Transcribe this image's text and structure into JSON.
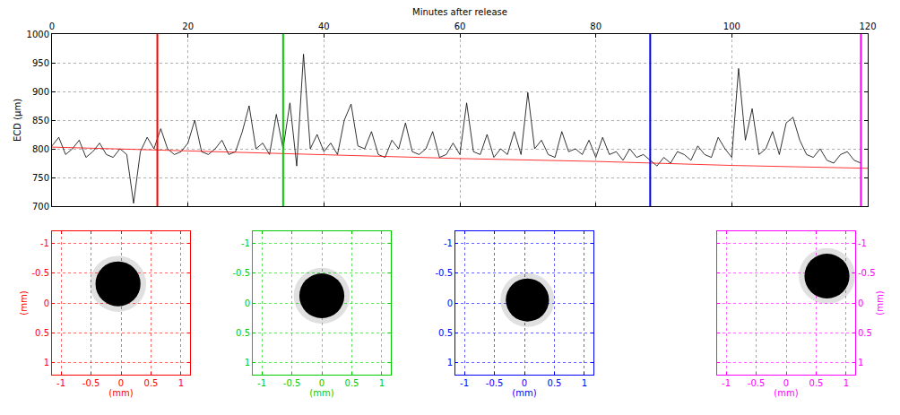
{
  "chart_data": {
    "type": "line",
    "x_label": "Minutes after release",
    "y_label": "ECD (μm)",
    "xlim": [
      0,
      120
    ],
    "xticks": [
      0,
      20,
      40,
      60,
      80,
      100,
      120
    ],
    "ylim": [
      700,
      1000
    ],
    "yticks": [
      700,
      750,
      800,
      850,
      900,
      950,
      1000
    ],
    "grid": true,
    "series": [
      {
        "color": "#000000",
        "line_style": "solid",
        "x": [
          0,
          1,
          2,
          3,
          4,
          5,
          6,
          7,
          8,
          9,
          10,
          11,
          12,
          13,
          14,
          15,
          16,
          17,
          18,
          19,
          20,
          21,
          22,
          23,
          24,
          25,
          26,
          27,
          28,
          29,
          30,
          31,
          32,
          33,
          34,
          35,
          36,
          37,
          38,
          39,
          40,
          41,
          42,
          43,
          44,
          45,
          46,
          47,
          48,
          49,
          50,
          51,
          52,
          53,
          54,
          55,
          56,
          57,
          58,
          59,
          60,
          61,
          62,
          63,
          64,
          65,
          66,
          67,
          68,
          69,
          70,
          71,
          72,
          73,
          74,
          75,
          76,
          77,
          78,
          79,
          80,
          81,
          82,
          83,
          84,
          85,
          86,
          87,
          88,
          89,
          90,
          91,
          92,
          93,
          94,
          95,
          96,
          97,
          98,
          99,
          100,
          101,
          102,
          103,
          104,
          105,
          106,
          107,
          108,
          109,
          110,
          111,
          112,
          113,
          114,
          115,
          116,
          117,
          118,
          119
        ],
        "values": [
          805,
          820,
          790,
          800,
          815,
          785,
          795,
          810,
          790,
          785,
          800,
          790,
          705,
          795,
          820,
          800,
          835,
          800,
          790,
          795,
          810,
          850,
          795,
          790,
          800,
          815,
          790,
          795,
          830,
          875,
          800,
          810,
          790,
          860,
          800,
          880,
          770,
          965,
          800,
          825,
          795,
          810,
          790,
          850,
          878,
          805,
          800,
          830,
          790,
          785,
          815,
          800,
          845,
          795,
          790,
          800,
          830,
          785,
          790,
          810,
          790,
          880,
          795,
          790,
          825,
          785,
          800,
          790,
          830,
          790,
          898,
          800,
          815,
          790,
          785,
          830,
          795,
          800,
          790,
          815,
          785,
          820,
          790,
          795,
          780,
          800,
          785,
          790,
          780,
          770,
          785,
          775,
          795,
          790,
          780,
          805,
          790,
          785,
          820,
          800,
          785,
          940,
          815,
          870,
          790,
          800,
          830,
          790,
          845,
          855,
          815,
          790,
          785,
          800,
          780,
          775,
          790,
          795,
          780,
          775
        ]
      },
      {
        "color": "#ff0000",
        "line_style": "solid",
        "x": [
          0,
          20,
          40,
          60,
          80,
          100,
          120
        ],
        "values": [
          803,
          796,
          789,
          783,
          778,
          771,
          766
        ]
      }
    ],
    "markers": [
      {
        "x": 15.5,
        "color": "#ff0000"
      },
      {
        "x": 34,
        "color": "#00cc00"
      },
      {
        "x": 88,
        "color": "#0000ff"
      },
      {
        "x": 119,
        "color": "#ff00ff"
      }
    ],
    "panels": [
      {
        "type": "image",
        "color": "#ff0000",
        "grid": true,
        "x_label": "(mm)",
        "y_label": "(mm)",
        "xlim": [
          -1.15,
          1.15
        ],
        "xticks": [
          -1,
          -0.5,
          0,
          0.5,
          1
        ],
        "ylim": [
          1.2,
          -1.2
        ],
        "yticks": [
          -1,
          -0.5,
          0,
          0.5,
          1
        ],
        "particle": {
          "x": -0.05,
          "y": -0.32,
          "diameter": 0.75
        }
      },
      {
        "type": "image",
        "color": "#00cc00",
        "grid": true,
        "x_label": "(mm)",
        "xlim": [
          -1.15,
          1.15
        ],
        "xticks": [
          -1,
          -0.5,
          0,
          0.5,
          1
        ],
        "ylim": [
          1.2,
          -1.2
        ],
        "yticks": [
          -1,
          -0.5,
          0,
          0.5,
          1
        ],
        "particle": {
          "x": 0.0,
          "y": -0.12,
          "diameter": 0.75
        }
      },
      {
        "type": "image",
        "color": "#0000ff",
        "grid": true,
        "x_label": "(mm)",
        "xlim": [
          -1.15,
          1.15
        ],
        "xticks": [
          -1,
          -0.5,
          0,
          0.5,
          1
        ],
        "ylim": [
          1.2,
          -1.2
        ],
        "yticks": [
          -1,
          -0.5,
          0,
          0.5,
          1
        ],
        "particle": {
          "x": 0.05,
          "y": -0.05,
          "diameter": 0.72
        }
      },
      {
        "type": "image",
        "color": "#ff00ff",
        "grid": true,
        "x_label": "(mm)",
        "y_label": "(mm)",
        "xlim": [
          -1.15,
          1.15
        ],
        "xticks": [
          -1,
          -0.5,
          0,
          0.5,
          1
        ],
        "ylim": [
          1.2,
          -1.2
        ],
        "yticks": [
          -1,
          -0.5,
          0,
          0.5,
          1
        ],
        "particle": {
          "x": 0.68,
          "y": -0.45,
          "diameter": 0.75
        }
      }
    ]
  }
}
